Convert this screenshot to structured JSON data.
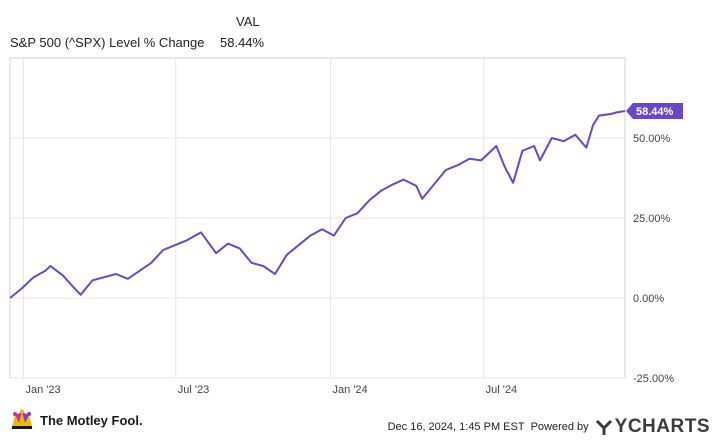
{
  "legend": {
    "header": "VAL",
    "series_name": "S&P 500 (^SPX) Level % Change",
    "series_value": "58.44%"
  },
  "chart_data": {
    "type": "line",
    "title": "",
    "xlabel": "",
    "ylabel": "",
    "x_tick_labels": [
      "Jan '23",
      "Jul '23",
      "Jan '24",
      "Jul '24"
    ],
    "y_tick_labels": [
      "-25.00%",
      "0.00%",
      "25.00%",
      "50.00%"
    ],
    "y_ticks": [
      -25,
      0,
      25,
      50
    ],
    "ylim": [
      -25,
      75
    ],
    "xlim": [
      "2022-12-16",
      "2024-12-16"
    ],
    "grid": true,
    "end_label": "58.44%",
    "line_color": "#6c47c4",
    "series": [
      {
        "name": "S&P 500 (^SPX) Level % Change",
        "x": [
          "2022-12-16",
          "2022-12-30",
          "2023-01-13",
          "2023-01-27",
          "2023-02-02",
          "2023-02-17",
          "2023-03-01",
          "2023-03-10",
          "2023-03-24",
          "2023-04-07",
          "2023-04-21",
          "2023-05-05",
          "2023-05-19",
          "2023-06-02",
          "2023-06-16",
          "2023-06-30",
          "2023-07-14",
          "2023-07-31",
          "2023-08-18",
          "2023-09-01",
          "2023-09-15",
          "2023-09-29",
          "2023-10-13",
          "2023-10-27",
          "2023-11-10",
          "2023-11-24",
          "2023-12-08",
          "2023-12-22",
          "2024-01-05",
          "2024-01-19",
          "2024-02-02",
          "2024-02-16",
          "2024-03-01",
          "2024-03-15",
          "2024-03-28",
          "2024-04-12",
          "2024-04-19",
          "2024-05-03",
          "2024-05-17",
          "2024-05-31",
          "2024-06-14",
          "2024-06-28",
          "2024-07-16",
          "2024-07-26",
          "2024-08-05",
          "2024-08-16",
          "2024-08-30",
          "2024-09-06",
          "2024-09-20",
          "2024-10-04",
          "2024-10-18",
          "2024-10-31",
          "2024-11-08",
          "2024-11-15",
          "2024-11-29",
          "2024-12-06",
          "2024-12-16"
        ],
        "values": [
          0.0,
          3.0,
          6.5,
          8.5,
          10.0,
          7.0,
          3.5,
          1.0,
          5.5,
          6.5,
          7.5,
          6.0,
          8.5,
          11.0,
          15.0,
          16.5,
          18.0,
          20.5,
          14.0,
          17.0,
          15.5,
          11.0,
          10.0,
          7.5,
          13.5,
          16.5,
          19.5,
          21.5,
          19.5,
          25.0,
          26.5,
          30.5,
          33.5,
          35.5,
          37.0,
          35.0,
          31.0,
          35.5,
          40.0,
          41.5,
          43.5,
          43.0,
          47.5,
          41.0,
          36.0,
          46.0,
          47.5,
          43.0,
          50.0,
          49.0,
          51.0,
          47.0,
          54.0,
          57.0,
          57.5,
          58.0,
          58.44
        ]
      }
    ]
  },
  "footer": {
    "logo_text": "The Motley Fool.",
    "timestamp": "Dec 16, 2024, 1:45 PM EST",
    "powered_by": "Powered by",
    "brand": "YCHARTS"
  },
  "colors": {
    "line": "#6c47c4",
    "end_badge": "#6c47c4",
    "grid": "#e6e6e6",
    "frame": "#d0d0d0"
  }
}
